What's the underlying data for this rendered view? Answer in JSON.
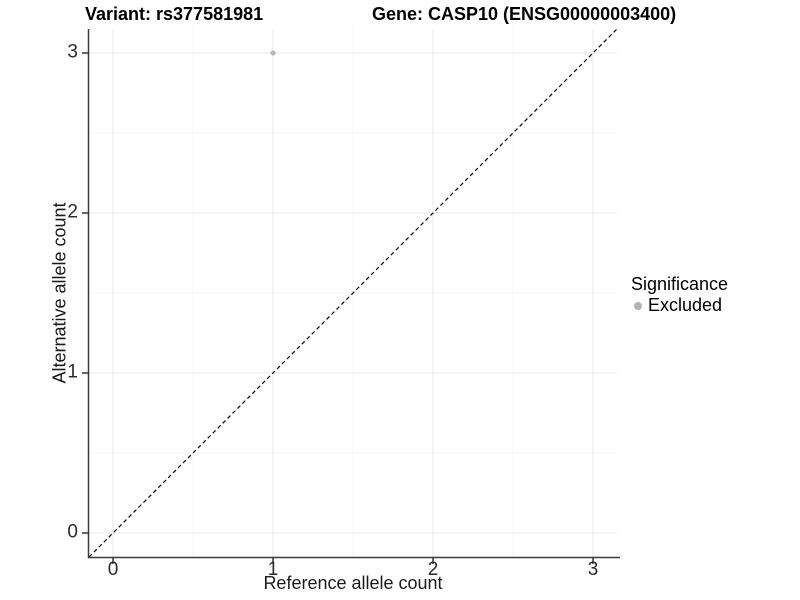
{
  "header": {
    "variant_title": "Variant: rs377581981",
    "gene_title": "Gene: CASP10 (ENSG00000003400)"
  },
  "chart_data": {
    "type": "scatter",
    "titles": {
      "left": "Variant: rs377581981",
      "right": "Gene: CASP10 (ENSG00000003400)"
    },
    "xlabel": "Reference allele count",
    "ylabel": "Alternative allele count",
    "xlim": [
      -0.15,
      3.15
    ],
    "ylim": [
      -0.15,
      3.15
    ],
    "x_ticks": [
      0,
      1,
      2,
      3
    ],
    "y_ticks": [
      0,
      1,
      2,
      3
    ],
    "grid": {
      "major": true,
      "minor": true
    },
    "series": [
      {
        "name": "Excluded",
        "color": "#b8b8b8",
        "point_radius": 2.6,
        "points": [
          {
            "x": 1,
            "y": 3
          }
        ]
      }
    ],
    "reference_line": {
      "kind": "identity",
      "style": "dashed",
      "color": "#000000",
      "from": [
        -0.15,
        -0.15
      ],
      "to": [
        3.15,
        3.15
      ]
    },
    "legend": {
      "title": "Significance",
      "position": "right",
      "entries": [
        {
          "label": "Excluded",
          "color": "#b2b2b2"
        }
      ]
    },
    "style": {
      "background": "#ffffff",
      "grid_major_color": "#e8e8e8",
      "grid_minor_color": "#f4f4f4",
      "axis_line_color": "#3a3a3a",
      "tick_color": "#333333",
      "text_color": "#000000"
    }
  }
}
